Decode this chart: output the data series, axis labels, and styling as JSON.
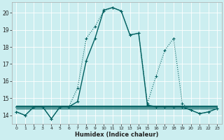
{
  "xlabel": "Humidex (Indice chaleur)",
  "background_color": "#cceef0",
  "grid_color": "#ffffff",
  "line_color": "#006060",
  "xlim": [
    -0.5,
    23.5
  ],
  "ylim": [
    13.5,
    20.6
  ],
  "yticks": [
    14,
    15,
    16,
    17,
    18,
    19,
    20
  ],
  "xticks": [
    0,
    1,
    2,
    3,
    4,
    5,
    6,
    7,
    8,
    9,
    10,
    11,
    12,
    13,
    14,
    15,
    16,
    17,
    18,
    19,
    20,
    21,
    22,
    23
  ],
  "x": [
    0,
    1,
    2,
    3,
    4,
    5,
    6,
    7,
    8,
    9,
    10,
    11,
    12,
    13,
    14,
    15,
    16,
    17,
    18,
    19,
    20,
    21,
    22,
    23
  ],
  "y_solid": [
    14.2,
    14.0,
    14.5,
    14.5,
    13.8,
    14.5,
    14.5,
    14.8,
    17.2,
    18.5,
    20.15,
    20.3,
    20.1,
    18.7,
    18.8,
    14.6,
    14.5,
    14.5,
    14.5,
    14.5,
    14.3,
    14.1,
    14.2,
    14.4
  ],
  "y_dotted": [
    14.2,
    14.0,
    14.5,
    14.5,
    13.8,
    14.5,
    14.5,
    15.6,
    18.5,
    19.2,
    20.1,
    20.3,
    20.1,
    18.7,
    18.8,
    14.7,
    16.3,
    17.8,
    18.5,
    14.7,
    14.3,
    14.1,
    14.2,
    14.4
  ],
  "y_flat1": [
    14.5,
    14.5,
    14.5,
    14.5,
    14.5,
    14.5,
    14.5,
    14.5,
    14.5,
    14.5,
    14.5,
    14.5,
    14.5,
    14.5,
    14.5,
    14.5,
    14.5,
    14.5,
    14.5,
    14.5,
    14.5,
    14.5,
    14.5,
    14.5
  ],
  "y_flat2": [
    14.4,
    14.4,
    14.4,
    14.4,
    14.4,
    14.4,
    14.4,
    14.4,
    14.4,
    14.4,
    14.4,
    14.4,
    14.4,
    14.4,
    14.4,
    14.4,
    14.4,
    14.4,
    14.4,
    14.4,
    14.4,
    14.4,
    14.4,
    14.4
  ],
  "y_flat3": [
    14.55,
    14.55,
    14.55,
    14.55,
    14.55,
    14.55,
    14.55,
    14.55,
    14.55,
    14.55,
    14.55,
    14.55,
    14.55,
    14.55,
    14.55,
    14.55,
    14.55,
    14.55,
    14.55,
    14.55,
    14.55,
    14.55,
    14.55,
    14.55
  ]
}
